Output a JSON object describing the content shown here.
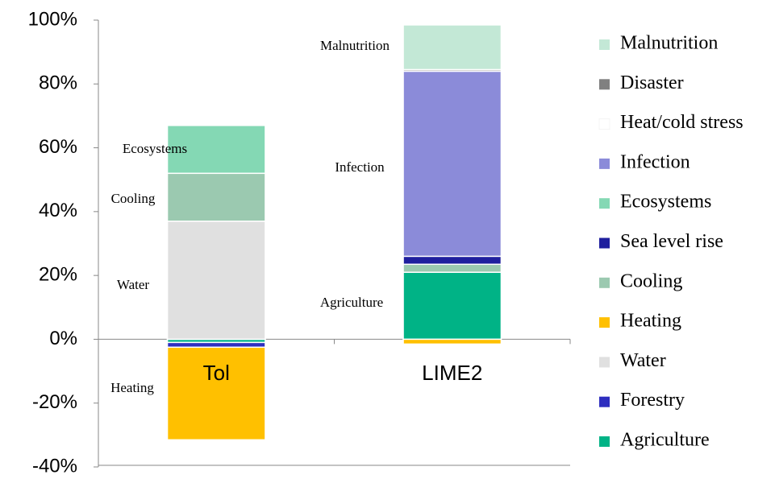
{
  "chart_data": {
    "type": "stacked-bar",
    "categories": [
      "Tol",
      "LIME2"
    ],
    "series": [
      {
        "name": "Agriculture",
        "color": "#00b386",
        "values": [
          -1,
          21
        ]
      },
      {
        "name": "Forestry",
        "color": "#2e2ebf",
        "values": [
          -1.5,
          0
        ]
      },
      {
        "name": "Water",
        "color": "#e0e0e0",
        "values": [
          37,
          0
        ]
      },
      {
        "name": "Heating",
        "color": "#ffc000",
        "values": [
          -29,
          -1.5
        ]
      },
      {
        "name": "Cooling",
        "color": "#9bc9b0",
        "values": [
          15,
          2.5
        ]
      },
      {
        "name": "Sea level rise",
        "color": "#1f1f9e",
        "values": [
          0,
          2.5
        ]
      },
      {
        "name": "Ecosystems",
        "color": "#84d8b4",
        "values": [
          15,
          0
        ]
      },
      {
        "name": "Infection",
        "color": "#8b8bd9",
        "values": [
          0,
          58
        ]
      },
      {
        "name": "Heat/cold stress",
        "color": "#ffffff",
        "values": [
          0,
          0
        ]
      },
      {
        "name": "Disaster",
        "color": "#808080",
        "values": [
          0,
          0.5
        ]
      },
      {
        "name": "Malnutrition",
        "color": "#c3e8d6",
        "values": [
          0,
          14
        ]
      }
    ],
    "ylim": [
      -40,
      100
    ],
    "yticks": [
      {
        "value": -40,
        "label": "-40%"
      },
      {
        "value": -20,
        "label": "-20%"
      },
      {
        "value": 0,
        "label": "0%"
      },
      {
        "value": 20,
        "label": "20%"
      },
      {
        "value": 40,
        "label": "40%"
      },
      {
        "value": 60,
        "label": "60%"
      },
      {
        "value": 80,
        "label": "80%"
      },
      {
        "value": 100,
        "label": "100%"
      }
    ],
    "annotations": [
      "Ecosystems",
      "Cooling",
      "Water",
      "Heating",
      "Malnutrition",
      "Infection",
      "Agriculture"
    ],
    "legend": "right"
  }
}
